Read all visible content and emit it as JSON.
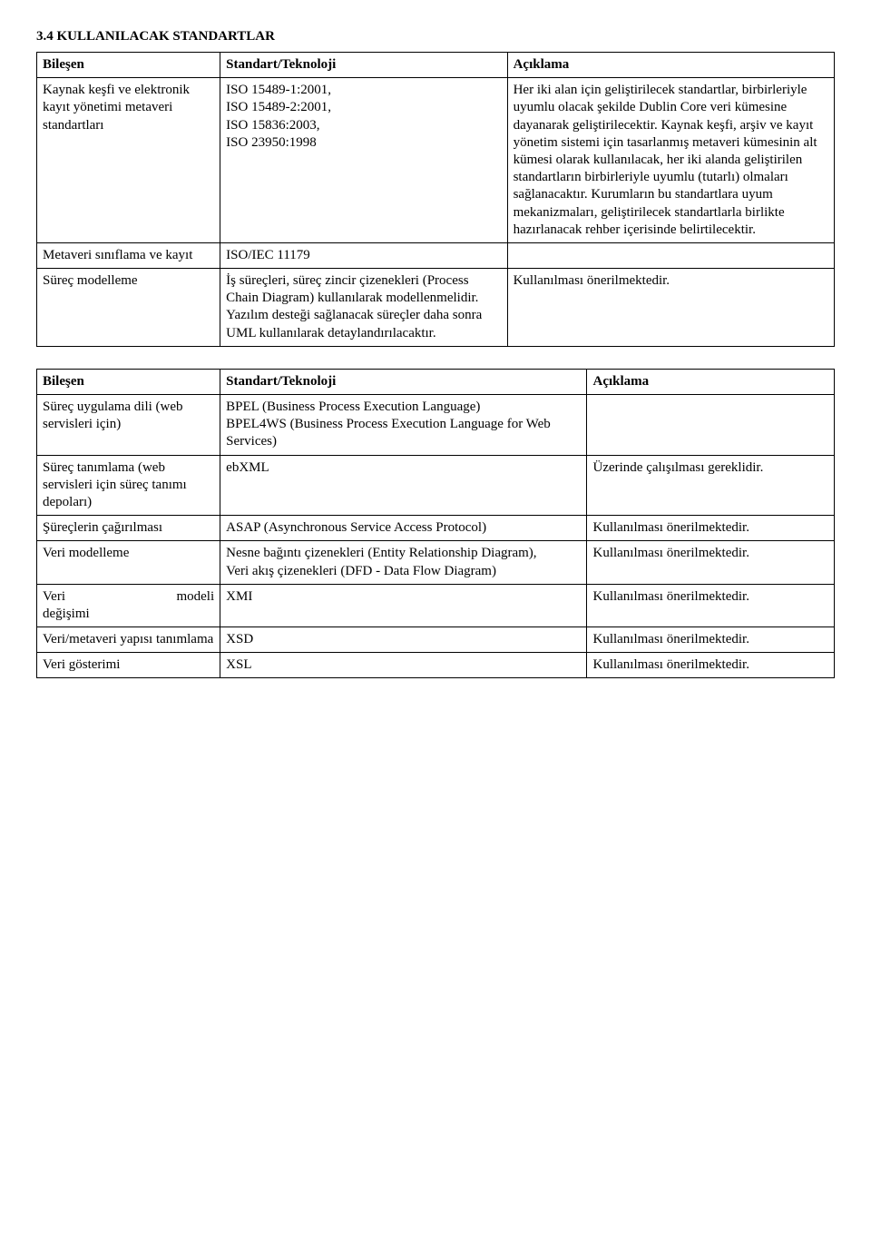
{
  "heading": "3.4   KULLANILACAK STANDARTLAR",
  "table1": {
    "headers": [
      "Bileşen",
      "Standart/Teknoloji",
      "Açıklama"
    ],
    "rows": [
      {
        "c1": "Kaynak keşfi ve elektronik kayıt yönetimi metaveri standartları",
        "c2": "ISO 15489-1:2001,\nISO 15489-2:2001,\nISO 15836:2003,\nISO 23950:1998",
        "c3": "Her iki alan için geliştirilecek standartlar, birbirleriyle uyumlu olacak şekilde Dublin Core veri kümesine dayanarak geliştirilecektir. Kaynak keşfi, arşiv ve kayıt yönetim sistemi için tasarlanmış metaveri kümesinin alt kümesi olarak kullanılacak, her iki alanda geliştirilen standartların birbirleriyle uyumlu (tutarlı) olmaları sağlanacaktır. Kurumların bu standartlara uyum mekanizmaları, geliştirilecek standartlarla birlikte hazırlanacak rehber içerisinde belirtilecektir."
      },
      {
        "c1": "Metaveri sınıflama ve kayıt",
        "c2": "ISO/IEC 11179",
        "c3": ""
      },
      {
        "c1": "Süreç modelleme",
        "c2": "İş süreçleri, süreç zincir çizenekleri (Process Chain Diagram) kullanılarak modellenmelidir. Yazılım desteği sağlanacak süreçler daha sonra UML kullanılarak detaylandırılacaktır.",
        "c3": "Kullanılması önerilmektedir."
      }
    ]
  },
  "table2": {
    "headers": [
      "Bileşen",
      "Standart/Teknoloji",
      "Açıklama"
    ],
    "rows": [
      {
        "c1": "Süreç uygulama dili (web servisleri için)",
        "c2": "BPEL (Business Process Execution Language)\nBPEL4WS (Business Process Execution Language for Web Services)",
        "c3": ""
      },
      {
        "c1": "Süreç tanımlama (web servisleri için süreç tanımı depoları)",
        "c2": "ebXML",
        "c3": "Üzerinde çalışılması gereklidir."
      },
      {
        "c1": "Şüreçlerin çağırılması",
        "c2": "ASAP (Asynchronous Service Access Protocol)",
        "c3": "Kullanılması önerilmektedir."
      },
      {
        "c1": "Veri modelleme",
        "c2": "Nesne bağıntı çizenekleri (Entity Relationship Diagram),\nVeri akış çizenekleri (DFD - Data Flow Diagram)",
        "c3": "Kullanılması önerilmektedir."
      },
      {
        "c1_label": "Veri",
        "c1_right": "modeli",
        "c1_line2": "değişimi",
        "c2": "XMI",
        "c3": "Kullanılması önerilmektedir."
      },
      {
        "c1": "Veri/metaveri yapısı tanımlama",
        "c2": "XSD",
        "c3": "Kullanılması önerilmektedir."
      },
      {
        "c1": "Veri gösterimi",
        "c2": "XSL",
        "c3": "Kullanılması önerilmektedir."
      }
    ]
  }
}
